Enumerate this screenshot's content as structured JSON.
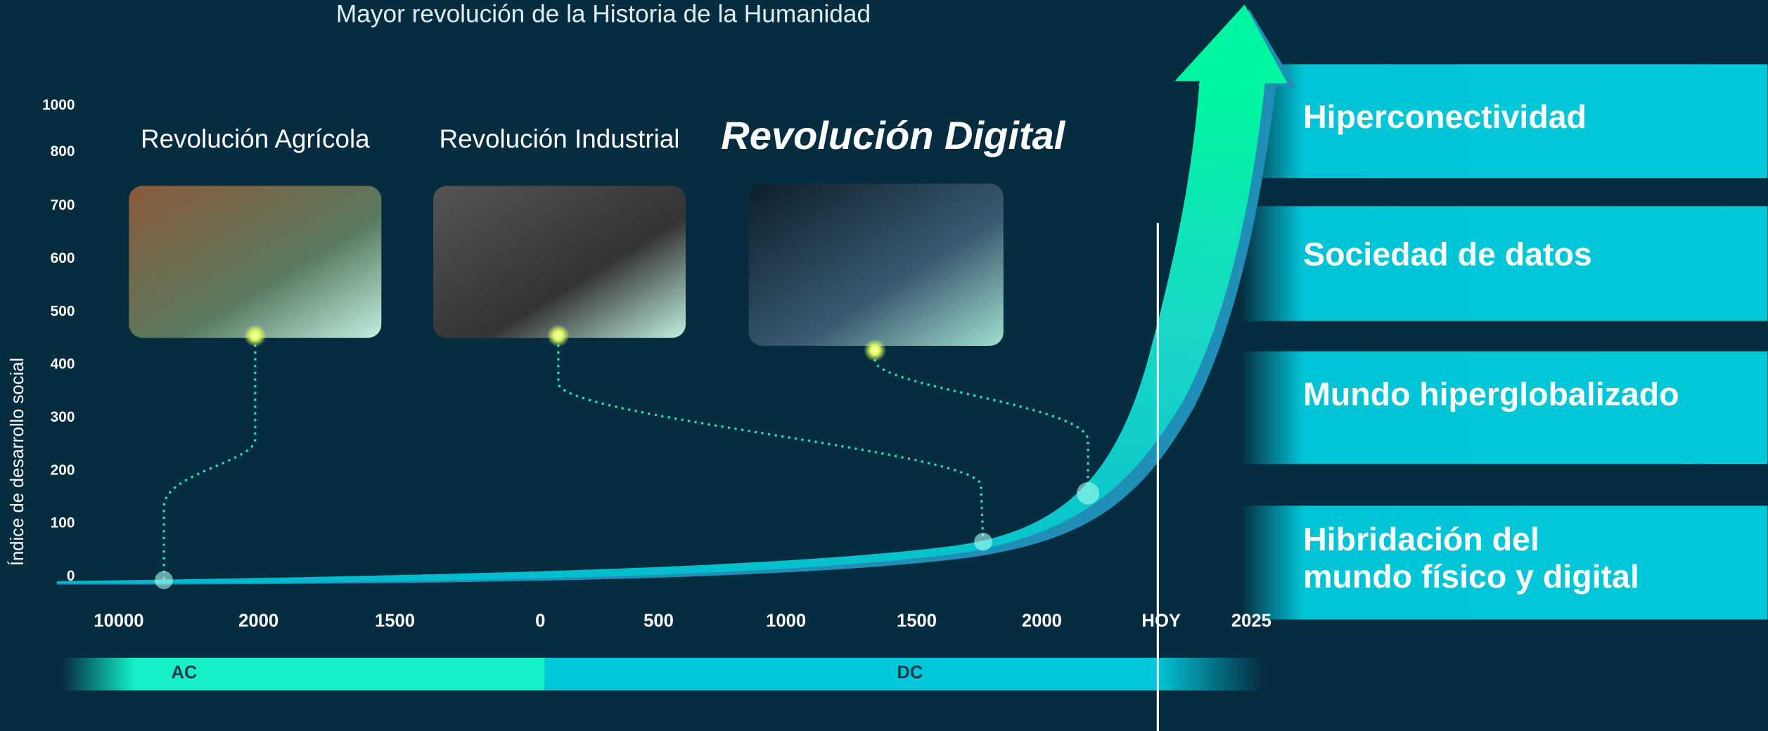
{
  "title": "Mayor revolución de la Historia de la Humanidad",
  "y_axis": {
    "label": "Índice de desarrollo social",
    "ticks": [
      1000,
      800,
      700,
      600,
      500,
      400,
      300,
      200,
      100,
      0
    ]
  },
  "x_axis": {
    "ticks": [
      10000,
      2000,
      1500,
      0,
      500,
      1000,
      1500,
      2000,
      "HOY",
      2025
    ]
  },
  "eras": [
    "AC",
    "DC"
  ],
  "revolutions": [
    "Revolución Agrícola",
    "Revolución Industrial",
    "Revolución Digital"
  ],
  "trends": [
    [
      "Hiperconectividad"
    ],
    [
      "Sociedad de datos"
    ],
    [
      "Mundo hiperglobalizado"
    ],
    [
      "Hibridación del",
      "mundo físico y digital"
    ]
  ]
}
